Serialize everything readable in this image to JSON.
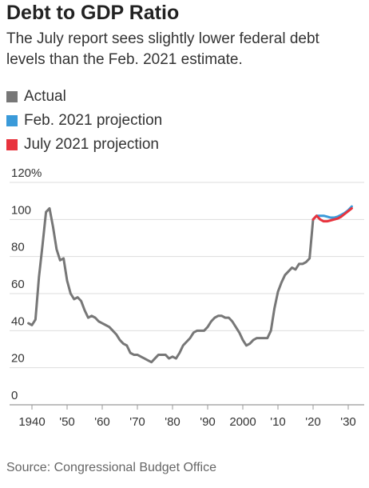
{
  "title": "Debt to GDP Ratio",
  "subtitle": "The July report sees slightly lower federal debt levels than the Feb. 2021 estimate.",
  "source": "Source: Congressional Budget Office",
  "colors": {
    "actual": "#777777",
    "feb": "#3a9ad9",
    "july": "#e8333d",
    "grid": "#dddddd",
    "text": "#333333"
  },
  "chart_data": {
    "type": "line",
    "title": "Debt to GDP Ratio",
    "xlim": [
      1937,
      2031
    ],
    "ylim": [
      0,
      120
    ],
    "y_ticks": [
      0,
      20,
      40,
      60,
      80,
      100,
      120
    ],
    "y_tick_labels": [
      "0",
      "20",
      "40",
      "60",
      "80",
      "100",
      "120%"
    ],
    "x_ticks": [
      1940,
      1950,
      1960,
      1970,
      1980,
      1990,
      2000,
      2010,
      2020,
      2030
    ],
    "x_tick_labels": [
      "1940",
      "'50",
      "'60",
      "'70",
      "'80",
      "'90",
      "2000",
      "'10",
      "'20",
      "'30"
    ],
    "grid": true,
    "legend_position": "top-left",
    "series": [
      {
        "name": "Actual",
        "color": "#777777",
        "x": [
          1939,
          1940,
          1941,
          1942,
          1943,
          1944,
          1945,
          1946,
          1947,
          1948,
          1949,
          1950,
          1951,
          1952,
          1953,
          1954,
          1955,
          1956,
          1957,
          1958,
          1959,
          1960,
          1961,
          1962,
          1963,
          1964,
          1965,
          1966,
          1967,
          1968,
          1969,
          1970,
          1971,
          1972,
          1973,
          1974,
          1975,
          1976,
          1977,
          1978,
          1979,
          1980,
          1981,
          1982,
          1983,
          1984,
          1985,
          1986,
          1987,
          1988,
          1989,
          1990,
          1991,
          1992,
          1993,
          1994,
          1995,
          1996,
          1997,
          1998,
          1999,
          2000,
          2001,
          2002,
          2003,
          2004,
          2005,
          2006,
          2007,
          2008,
          2009,
          2010,
          2011,
          2012,
          2013,
          2014,
          2015,
          2016,
          2017,
          2018,
          2019,
          2020
        ],
        "values": [
          44,
          43,
          46,
          69,
          86,
          104,
          106,
          96,
          84,
          78,
          79,
          67,
          60,
          57,
          58,
          56,
          51,
          47,
          48,
          47,
          45,
          44,
          43,
          42,
          40,
          38,
          35,
          33,
          32,
          28,
          27,
          27,
          26,
          25,
          24,
          23,
          25,
          27,
          27,
          27,
          25,
          26,
          25,
          28,
          32,
          34,
          36,
          39,
          40,
          40,
          40,
          42,
          45,
          47,
          48,
          48,
          47,
          47,
          45,
          42,
          39,
          35,
          32,
          33,
          35,
          36,
          36,
          36,
          36,
          40,
          52,
          61,
          66,
          70,
          72,
          74,
          73,
          76,
          76,
          77,
          79,
          100
        ]
      },
      {
        "name": "Feb. 2021 projection",
        "color": "#3a9ad9",
        "x": [
          2020,
          2021,
          2022,
          2023,
          2024,
          2025,
          2026,
          2027,
          2028,
          2029,
          2030,
          2031
        ],
        "values": [
          100,
          102,
          102,
          102,
          101.5,
          101,
          101,
          101.5,
          102.5,
          103.5,
          105,
          107
        ]
      },
      {
        "name": "July 2021 projection",
        "color": "#e8333d",
        "x": [
          2020,
          2021,
          2022,
          2023,
          2024,
          2025,
          2026,
          2027,
          2028,
          2029,
          2030,
          2031
        ],
        "values": [
          100,
          102,
          100,
          99,
          99,
          99.5,
          100,
          100.5,
          101.5,
          103,
          104.5,
          106
        ]
      }
    ]
  }
}
